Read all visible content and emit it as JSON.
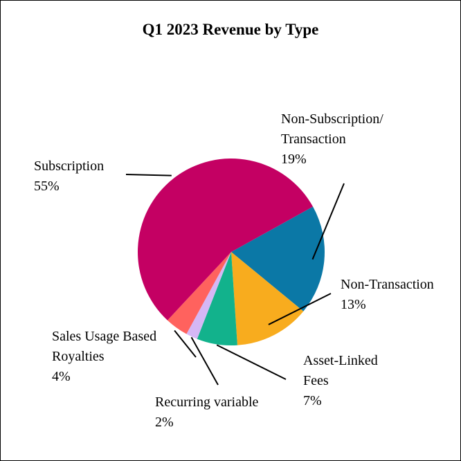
{
  "chart_data": {
    "type": "pie",
    "title": "Q1 2023 Revenue by Type",
    "slices": [
      {
        "id": "non-subscription-transaction",
        "label_lines": [
          "Non-Subscription/",
          "Transaction"
        ],
        "value": 19,
        "pct_label": "19%",
        "color": "#0B78A6"
      },
      {
        "id": "non-transaction",
        "label_lines": [
          "Non-Transaction"
        ],
        "value": 13,
        "pct_label": "13%",
        "color": "#F8AC1E"
      },
      {
        "id": "asset-linked-fees",
        "label_lines": [
          "Asset-Linked",
          "Fees"
        ],
        "value": 7,
        "pct_label": "7%",
        "color": "#12B28C"
      },
      {
        "id": "recurring-variable",
        "label_lines": [
          "Recurring variable"
        ],
        "value": 2,
        "pct_label": "2%",
        "color": "#D5B7F5"
      },
      {
        "id": "sales-usage-based-royalties",
        "label_lines": [
          "Sales Usage Based",
          "Royalties"
        ],
        "value": 4,
        "pct_label": "4%",
        "color": "#FF625E"
      },
      {
        "id": "subscription",
        "label_lines": [
          "Subscription"
        ],
        "value": 55,
        "pct_label": "55%",
        "color": "#C40063"
      }
    ]
  }
}
